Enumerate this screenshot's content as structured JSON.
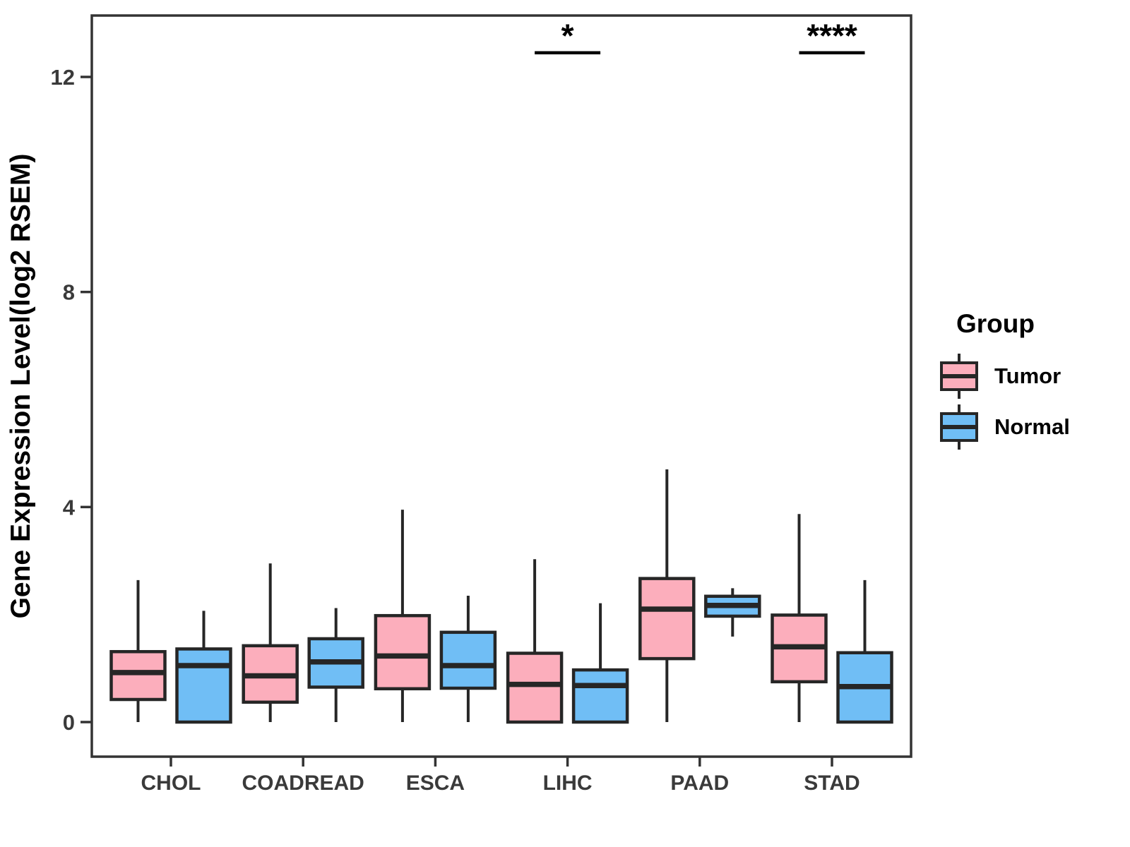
{
  "figure": {
    "background": "#ffffff"
  },
  "chart_data": {
    "type": "boxplot",
    "title": "",
    "xlabel": "",
    "ylabel": "Gene Expression Level(log2 RSEM)",
    "categories": [
      "CHOL",
      "COADREAD",
      "ESCA",
      "LIHC",
      "PAAD",
      "STAD"
    ],
    "y_ticks": [
      0,
      4,
      8,
      12
    ],
    "ylim": [
      -0.65,
      13.15
    ],
    "grid": false,
    "legend": {
      "title": "Group",
      "position": "right"
    },
    "series": [
      {
        "name": "Tumor",
        "color": "#FCAEBC",
        "boxes": [
          {
            "category": "CHOL",
            "whisker_low": 0,
            "q1": 0.42,
            "median": 0.92,
            "q3": 1.31,
            "whisker_high": 2.64
          },
          {
            "category": "COADREAD",
            "whisker_low": 0,
            "q1": 0.37,
            "median": 0.86,
            "q3": 1.42,
            "whisker_high": 2.95
          },
          {
            "category": "ESCA",
            "whisker_low": 0,
            "q1": 0.62,
            "median": 1.23,
            "q3": 1.98,
            "whisker_high": 3.95
          },
          {
            "category": "LIHC",
            "whisker_low": 0,
            "q1": 0.0,
            "median": 0.7,
            "q3": 1.28,
            "whisker_high": 3.03
          },
          {
            "category": "PAAD",
            "whisker_low": 0,
            "q1": 1.18,
            "median": 2.1,
            "q3": 2.67,
            "whisker_high": 4.7
          },
          {
            "category": "STAD",
            "whisker_low": 0,
            "q1": 0.75,
            "median": 1.4,
            "q3": 1.99,
            "whisker_high": 3.87
          }
        ]
      },
      {
        "name": "Normal",
        "color": "#70BEF5",
        "boxes": [
          {
            "category": "CHOL",
            "whisker_low": 0,
            "q1": 0.0,
            "median": 1.05,
            "q3": 1.36,
            "whisker_high": 2.07
          },
          {
            "category": "COADREAD",
            "whisker_low": 0,
            "q1": 0.65,
            "median": 1.12,
            "q3": 1.55,
            "whisker_high": 2.12
          },
          {
            "category": "ESCA",
            "whisker_low": 0,
            "q1": 0.63,
            "median": 1.05,
            "q3": 1.67,
            "whisker_high": 2.35
          },
          {
            "category": "LIHC",
            "whisker_low": 0,
            "q1": 0.0,
            "median": 0.68,
            "q3": 0.97,
            "whisker_high": 2.21
          },
          {
            "category": "PAAD",
            "whisker_low": 1.59,
            "q1": 1.97,
            "median": 2.17,
            "q3": 2.34,
            "whisker_high": 2.49
          },
          {
            "category": "STAD",
            "whisker_low": 0,
            "q1": 0.0,
            "median": 0.66,
            "q3": 1.29,
            "whisker_high": 2.64
          }
        ]
      }
    ],
    "annotations": [
      {
        "category": "LIHC",
        "label": "*",
        "y": 12.45
      },
      {
        "category": "STAD",
        "label": "****",
        "y": 12.45
      }
    ],
    "colors": {
      "box_stroke": "#262626",
      "median": "#262626",
      "whisker": "#262626",
      "panel_border": "#333333",
      "axis_text": "#3a3a3a",
      "axis_title": "#000000",
      "annotation": "#000000"
    }
  }
}
